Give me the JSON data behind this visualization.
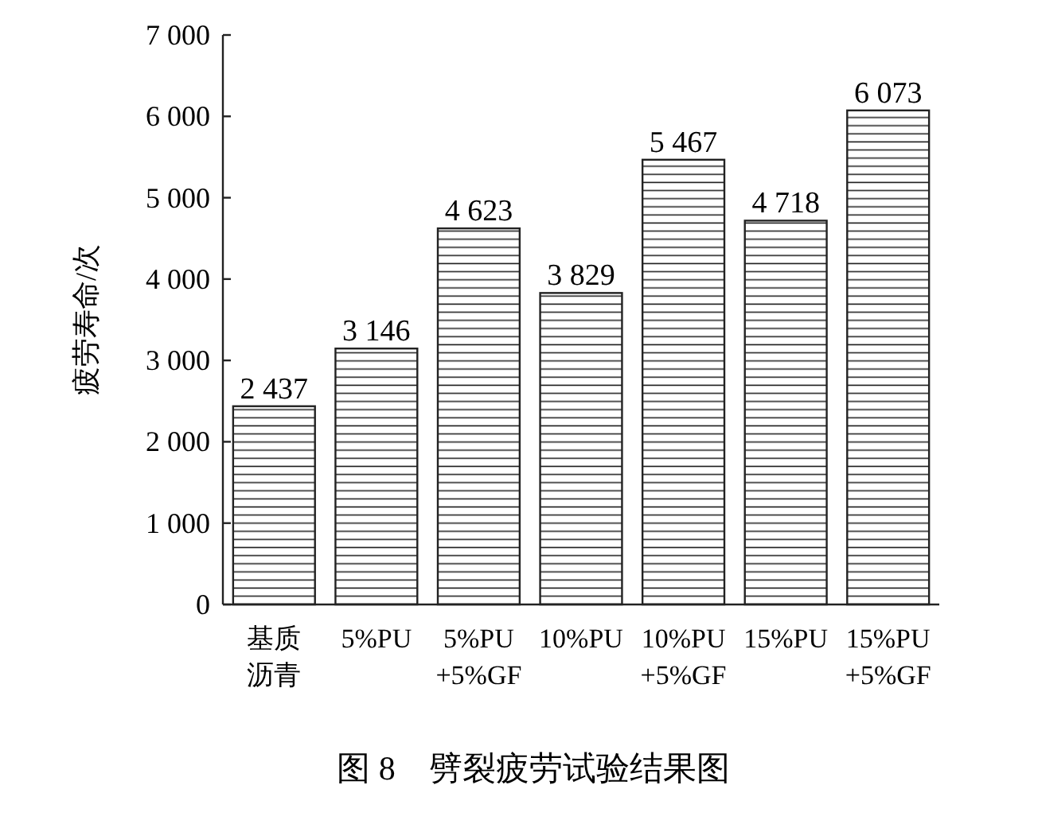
{
  "chart_data": {
    "type": "bar",
    "title": "图 8　劈裂疲劳试验结果图",
    "ylabel": "疲劳寿命/次",
    "categories": [
      "基质沥青",
      "5%PU",
      "5%PU\n+5%GF",
      "10%PU",
      "10%PU\n+5%GF",
      "15%PU",
      "15%PU\n+5%GF"
    ],
    "values": [
      2437,
      3146,
      4623,
      3829,
      5467,
      4718,
      6073
    ],
    "value_labels": [
      "2 437",
      "3 146",
      "4 623",
      "3 829",
      "5 467",
      "4 718",
      "6 073"
    ],
    "color": "#ffffff",
    "ylim": [
      0,
      7000
    ],
    "yticks": [
      {
        "value": 0,
        "label": "0"
      },
      {
        "value": 1000,
        "label": "1 000"
      },
      {
        "value": 2000,
        "label": "2 000"
      },
      {
        "value": 3000,
        "label": "3 000"
      },
      {
        "value": 4000,
        "label": "4 000"
      },
      {
        "value": 5000,
        "label": "5 000"
      },
      {
        "value": 6000,
        "label": "6 000"
      },
      {
        "value": 7000,
        "label": "7 000"
      }
    ],
    "grid": false
  }
}
